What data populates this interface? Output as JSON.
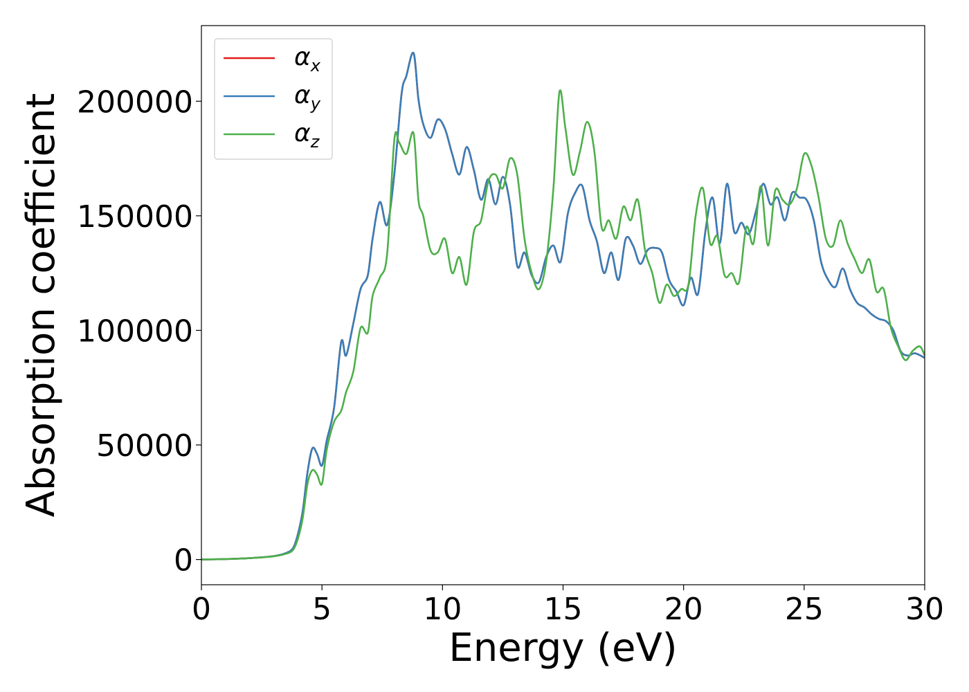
{
  "chart_data": {
    "type": "line",
    "title": "",
    "xlabel": "Energy (eV)",
    "ylabel": "Absorption coefficient",
    "xlim": [
      0,
      30
    ],
    "ylim": [
      -11000,
      233000
    ],
    "xticks": [
      0,
      5,
      10,
      15,
      20,
      25,
      30
    ],
    "xtick_labels": [
      "0",
      "5",
      "10",
      "15",
      "20",
      "25",
      "30"
    ],
    "yticks": [
      0,
      50000,
      100000,
      150000,
      200000
    ],
    "ytick_labels": [
      "0",
      "50000",
      "100000",
      "150000",
      "200000"
    ],
    "grid": false,
    "legend_position": "top-left",
    "series": [
      {
        "name": "α_x",
        "color": "#e41a1c",
        "x": [
          0,
          1,
          2,
          3,
          3.5,
          3.8,
          4,
          4.2,
          4.4,
          4.6,
          4.8,
          5,
          5.2,
          5.5,
          5.8,
          6,
          6.3,
          6.6,
          6.9,
          7.1,
          7.4,
          7.7,
          8,
          8.3,
          8.5,
          8.8,
          9,
          9.2,
          9.5,
          9.8,
          10.1,
          10.4,
          10.7,
          11,
          11.3,
          11.6,
          11.9,
          12.2,
          12.5,
          12.8,
          13.1,
          13.4,
          13.7,
          14,
          14.3,
          14.6,
          14.9,
          15.2,
          15.5,
          15.8,
          16.1,
          16.4,
          16.7,
          17,
          17.3,
          17.6,
          17.9,
          18.2,
          18.5,
          18.8,
          19.1,
          19.4,
          19.7,
          20,
          20.3,
          20.6,
          20.9,
          21.2,
          21.5,
          21.8,
          22.1,
          22.4,
          22.7,
          23,
          23.3,
          23.6,
          23.9,
          24.2,
          24.5,
          24.8,
          25.1,
          25.4,
          25.7,
          26,
          26.3,
          26.6,
          26.9,
          27.2,
          27.5,
          27.8,
          28.1,
          28.4,
          28.7,
          29,
          29.3,
          29.6,
          30
        ],
        "y": [
          0,
          200,
          600,
          1500,
          2800,
          5000,
          11000,
          21000,
          38000,
          48500,
          46000,
          41000,
          52000,
          66000,
          95000,
          89000,
          103000,
          118000,
          124000,
          140000,
          156000,
          146000,
          168000,
          203000,
          211000,
          221000,
          201000,
          190000,
          184000,
          192000,
          188000,
          177000,
          168000,
          180000,
          170000,
          157000,
          166000,
          155000,
          167000,
          155000,
          128000,
          134000,
          124000,
          121000,
          132000,
          137000,
          130000,
          151000,
          160000,
          163000,
          148000,
          139000,
          125000,
          134000,
          122000,
          140000,
          137000,
          129000,
          135000,
          136000,
          134000,
          122000,
          117000,
          111000,
          123000,
          116000,
          143000,
          158000,
          138000,
          164000,
          143000,
          147000,
          142000,
          152000,
          164000,
          155000,
          158000,
          148000,
          160000,
          158000,
          157000,
          148000,
          130000,
          122000,
          119000,
          127000,
          118000,
          112000,
          110000,
          107000,
          105000,
          104000,
          100000,
          91000,
          89000,
          90000,
          88000
        ]
      },
      {
        "name": "α_y",
        "color": "#377eb8",
        "x": [
          0,
          1,
          2,
          3,
          3.5,
          3.8,
          4,
          4.2,
          4.4,
          4.6,
          4.8,
          5,
          5.2,
          5.5,
          5.8,
          6,
          6.3,
          6.6,
          6.9,
          7.1,
          7.4,
          7.7,
          8,
          8.3,
          8.5,
          8.8,
          9,
          9.2,
          9.5,
          9.8,
          10.1,
          10.4,
          10.7,
          11,
          11.3,
          11.6,
          11.9,
          12.2,
          12.5,
          12.8,
          13.1,
          13.4,
          13.7,
          14,
          14.3,
          14.6,
          14.9,
          15.2,
          15.5,
          15.8,
          16.1,
          16.4,
          16.7,
          17,
          17.3,
          17.6,
          17.9,
          18.2,
          18.5,
          18.8,
          19.1,
          19.4,
          19.7,
          20,
          20.3,
          20.6,
          20.9,
          21.2,
          21.5,
          21.8,
          22.1,
          22.4,
          22.7,
          23,
          23.3,
          23.6,
          23.9,
          24.2,
          24.5,
          24.8,
          25.1,
          25.4,
          25.7,
          26,
          26.3,
          26.6,
          26.9,
          27.2,
          27.5,
          27.8,
          28.1,
          28.4,
          28.7,
          29,
          29.3,
          29.6,
          30
        ],
        "y": [
          0,
          200,
          600,
          1500,
          2800,
          5000,
          11000,
          21000,
          38000,
          48500,
          46000,
          41000,
          52000,
          66000,
          95000,
          89000,
          103000,
          118000,
          124000,
          140000,
          156000,
          146000,
          168000,
          203000,
          211000,
          221000,
          201000,
          190000,
          184000,
          192000,
          188000,
          177000,
          168000,
          180000,
          170000,
          157000,
          166000,
          155000,
          167000,
          155000,
          128000,
          134000,
          124000,
          121000,
          132000,
          137000,
          130000,
          151000,
          160000,
          163000,
          148000,
          139000,
          125000,
          134000,
          122000,
          140000,
          137000,
          129000,
          135000,
          136000,
          134000,
          122000,
          117000,
          111000,
          123000,
          116000,
          143000,
          158000,
          138000,
          164000,
          143000,
          147000,
          142000,
          152000,
          164000,
          155000,
          158000,
          148000,
          160000,
          158000,
          157000,
          148000,
          130000,
          122000,
          119000,
          127000,
          118000,
          112000,
          110000,
          107000,
          105000,
          104000,
          100000,
          91000,
          89000,
          90000,
          88000
        ]
      },
      {
        "name": "α_z",
        "color": "#4daf4a",
        "x": [
          0,
          1,
          2,
          3,
          3.5,
          3.8,
          4,
          4.2,
          4.4,
          4.6,
          4.8,
          5,
          5.2,
          5.5,
          5.8,
          6,
          6.3,
          6.6,
          6.9,
          7.1,
          7.4,
          7.7,
          8,
          8.2,
          8.5,
          8.8,
          9,
          9.2,
          9.5,
          9.8,
          10.1,
          10.4,
          10.7,
          11,
          11.3,
          11.6,
          11.9,
          12.2,
          12.5,
          12.8,
          13.1,
          13.4,
          13.7,
          14,
          14.3,
          14.6,
          14.85,
          15.1,
          15.4,
          15.7,
          16,
          16.3,
          16.6,
          16.9,
          17.2,
          17.5,
          17.8,
          18.1,
          18.4,
          18.7,
          19,
          19.3,
          19.6,
          19.9,
          20.2,
          20.5,
          20.8,
          21.1,
          21.4,
          21.7,
          22,
          22.3,
          22.6,
          22.9,
          23.2,
          23.5,
          23.8,
          24.1,
          24.4,
          24.7,
          25,
          25.3,
          25.6,
          25.9,
          26.2,
          26.5,
          26.8,
          27.1,
          27.4,
          27.7,
          28,
          28.3,
          28.6,
          28.9,
          29.2,
          29.5,
          29.8,
          30
        ],
        "y": [
          0,
          200,
          600,
          1400,
          2500,
          4200,
          9000,
          18000,
          33000,
          39000,
          37000,
          33000,
          48000,
          60000,
          65000,
          73000,
          82000,
          101000,
          99000,
          115000,
          123000,
          133000,
          183000,
          182000,
          177000,
          186000,
          157000,
          150000,
          135000,
          134000,
          140000,
          125000,
          132000,
          120000,
          143000,
          148000,
          165000,
          168000,
          162000,
          175000,
          168000,
          140000,
          125000,
          118000,
          130000,
          162000,
          204000,
          188000,
          168000,
          178000,
          191000,
          178000,
          145000,
          148000,
          140000,
          154000,
          148000,
          157000,
          135000,
          125000,
          112000,
          120000,
          115000,
          118000,
          120000,
          150000,
          162000,
          138000,
          141000,
          124000,
          125000,
          121000,
          145000,
          138000,
          163000,
          137000,
          161000,
          157000,
          155000,
          162000,
          177000,
          172000,
          158000,
          140000,
          137000,
          148000,
          138000,
          131000,
          125000,
          131000,
          117000,
          118000,
          101000,
          93000,
          87000,
          91000,
          93000,
          89000
        ]
      }
    ]
  }
}
